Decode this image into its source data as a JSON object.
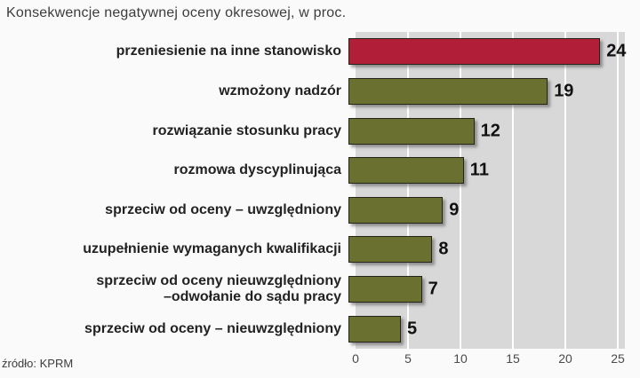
{
  "title": "Konsekwencje negatywnej oceny okresowej, w proc.",
  "source": "źródło: KPRM",
  "chart_data": {
    "type": "bar",
    "orientation": "horizontal",
    "title": "Konsekwencje negatywnej oceny okresowej, w proc.",
    "categories": [
      "przeniesienie na inne stanowisko",
      "wzmożony nadzór",
      "rozwiązanie stosunku pracy",
      "rozmowa dyscyplinująca",
      "sprzeciw od oceny – uwzględniony",
      "uzupełnienie wymaganych kwalifikacji",
      "sprzeciw od oceny nieuwzględniony\n–odwołanie do sądu pracy",
      "sprzeciw od oceny – nieuwzględniony"
    ],
    "values": [
      24,
      19,
      12,
      11,
      9,
      8,
      7,
      5
    ],
    "bar_colors": [
      "#b11e37",
      "#6a7030",
      "#6a7030",
      "#6a7030",
      "#6a7030",
      "#6a7030",
      "#6a7030",
      "#6a7030"
    ],
    "xlim": [
      0,
      25
    ],
    "xticks": [
      0,
      5,
      10,
      15,
      20,
      25
    ],
    "grid": true,
    "legend": false,
    "source": "źródło: KPRM"
  },
  "colors": {
    "panel": "#d8d8d8",
    "gridline": "#ffffff",
    "bar_border": "#23231a",
    "bar_red": "#b11e37",
    "bar_olive": "#6a7030",
    "text": "#222222",
    "axis_text": "#4a4a4a"
  }
}
